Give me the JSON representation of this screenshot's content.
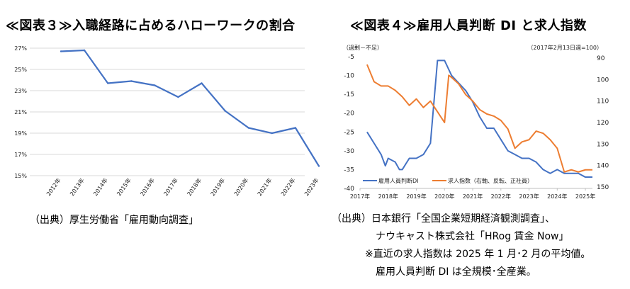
{
  "left": {
    "title": "≪図表３≫入職経路に占めるハローワークの割合",
    "source": "（出典）厚生労働省「雇用動向調査」"
  },
  "right": {
    "title": "≪図表４≫雇用人員判断 DI と求人指数",
    "source_lines": [
      "（出典）日本銀行「全国企業短期経済観測調査」、",
      "ナウキャスト株式会社「HRog 賃金 Now」",
      "※直近の求人指数は 2025 年 1 月･2 月の平均値。",
      "雇用人員判断 DI は全規模･全産業。"
    ]
  },
  "colors": {
    "blue": "#4472c4",
    "orange": "#ed7d31",
    "grid": "#d9d9d9"
  },
  "chart_data": [
    {
      "type": "line",
      "title": "≪図表３≫入職経路に占めるハローワークの割合",
      "categories": [
        "2012年",
        "2013年",
        "2014年",
        "2015年",
        "2016年",
        "2017年",
        "2018年",
        "2019年",
        "2020年",
        "2021年",
        "2022年",
        "2023年"
      ],
      "series": [
        {
          "values": [
            26.7,
            26.8,
            23.7,
            23.9,
            23.5,
            22.4,
            23.7,
            21.1,
            19.5,
            19.0,
            19.5,
            15.9
          ]
        }
      ],
      "yticks": [
        "27%",
        "25%",
        "23%",
        "21%",
        "19%",
        "17%",
        "15%"
      ],
      "ylim": [
        15,
        27.4
      ],
      "grid": true
    },
    {
      "type": "line",
      "title": "≪図表４≫雇用人員判断 DI と求人指数",
      "left_axis_note": "（過剰－不足）",
      "right_axis_note": "（2017年2月13日週=100）",
      "x_ticks": [
        "2017年",
        "2018年",
        "2019年",
        "2020年",
        "2021年",
        "2022年",
        "2023年",
        "2024年",
        "2025年"
      ],
      "xlim": [
        2017.0,
        2025.25
      ],
      "y_left": {
        "ticks": [
          "-5",
          "-10",
          "-15",
          "-20",
          "-25",
          "-30",
          "-35",
          "-40"
        ],
        "range": [
          -40,
          -5
        ]
      },
      "y_right": {
        "ticks": [
          "90",
          "100",
          "110",
          "120",
          "130",
          "140",
          "150"
        ],
        "range": [
          90,
          150
        ],
        "inverted": true
      },
      "legend_position": "bottom-left",
      "series": [
        {
          "name": "雇用人員判断DI",
          "axis": "left",
          "color": "#4472c4",
          "x": [
            2017.25,
            2017.5,
            2017.75,
            2017.9,
            2018.0,
            2018.25,
            2018.4,
            2018.5,
            2018.75,
            2019.0,
            2019.25,
            2019.5,
            2019.75,
            2020.0,
            2020.25,
            2020.5,
            2020.75,
            2021.0,
            2021.25,
            2021.5,
            2021.75,
            2022.0,
            2022.25,
            2022.5,
            2022.75,
            2023.0,
            2023.25,
            2023.5,
            2023.75,
            2024.0,
            2024.25,
            2024.5,
            2024.75,
            2025.0,
            2025.25
          ],
          "y": [
            -25,
            -28,
            -31,
            -34,
            -32,
            -33,
            -35,
            -35,
            -32,
            -32,
            -31,
            -28,
            -6,
            -6,
            -10,
            -12,
            -14,
            -17,
            -21,
            -24,
            -24,
            -27,
            -30,
            -31,
            -32,
            -32,
            -33,
            -35,
            -36,
            -35,
            -36,
            -36,
            -36,
            -37,
            -37
          ]
        },
        {
          "name": "求人指数（右軸、反転、正社員）",
          "axis": "right",
          "color": "#ed7d31",
          "x": [
            2017.25,
            2017.5,
            2017.75,
            2018.0,
            2018.25,
            2018.5,
            2018.75,
            2019.0,
            2019.25,
            2019.5,
            2019.75,
            2020.0,
            2020.15,
            2020.25,
            2020.5,
            2020.75,
            2021.0,
            2021.25,
            2021.5,
            2021.75,
            2022.0,
            2022.25,
            2022.5,
            2022.75,
            2023.0,
            2023.25,
            2023.5,
            2023.75,
            2024.0,
            2024.25,
            2024.5,
            2024.75,
            2025.0,
            2025.25
          ],
          "y": [
            93,
            101,
            103,
            103,
            105,
            108,
            112,
            109,
            113,
            110,
            115,
            120,
            98,
            99,
            102,
            107,
            110,
            114,
            116,
            117,
            119,
            123,
            132,
            129,
            128,
            124,
            125,
            128,
            132,
            143,
            142,
            143,
            142,
            142
          ]
        }
      ]
    }
  ]
}
